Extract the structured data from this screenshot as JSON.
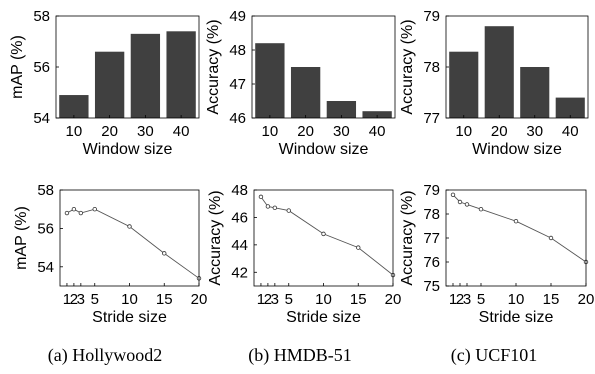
{
  "chart_data": [
    {
      "type": "bar",
      "categories": [
        "10",
        "20",
        "30",
        "40"
      ],
      "values": [
        54.9,
        56.6,
        57.3,
        57.4
      ],
      "xlabel": "Window size",
      "ylabel": "mAP (%)",
      "ylim": [
        54,
        58
      ],
      "yticks": [
        "54",
        "56",
        "58"
      ],
      "grid": false
    },
    {
      "type": "bar",
      "categories": [
        "10",
        "20",
        "30",
        "40"
      ],
      "values": [
        48.2,
        47.5,
        46.5,
        46.2
      ],
      "xlabel": "Window size",
      "ylabel": "Accuracy (%)",
      "ylim": [
        46,
        49
      ],
      "yticks": [
        "46",
        "47",
        "48",
        "49"
      ],
      "grid": false
    },
    {
      "type": "bar",
      "categories": [
        "10",
        "20",
        "30",
        "40"
      ],
      "values": [
        78.3,
        78.8,
        78.0,
        77.4
      ],
      "xlabel": "Window size",
      "ylabel": "Accuracy (%)",
      "ylim": [
        77,
        79
      ],
      "yticks": [
        "77",
        "78",
        "79"
      ],
      "grid": false
    },
    {
      "type": "line",
      "x": [
        1,
        2,
        3,
        5,
        10,
        15,
        20
      ],
      "values": [
        56.8,
        57.0,
        56.8,
        57.0,
        56.1,
        54.7,
        53.4
      ],
      "xticks": [
        "1",
        "2",
        "3",
        "5",
        "10",
        "15",
        "20"
      ],
      "xlim": [
        0,
        20
      ],
      "xlabel": "Stride size",
      "ylabel": "mAP (%)",
      "ylim": [
        53,
        58
      ],
      "yticks": [
        "54",
        "56",
        "58"
      ],
      "grid": false
    },
    {
      "type": "line",
      "x": [
        1,
        2,
        3,
        5,
        10,
        15,
        20
      ],
      "values": [
        47.5,
        46.8,
        46.7,
        46.5,
        44.8,
        43.8,
        41.8
      ],
      "xticks": [
        "1",
        "2",
        "3",
        "5",
        "10",
        "15",
        "20"
      ],
      "xlim": [
        0,
        20
      ],
      "xlabel": "Stride size",
      "ylabel": "Accuracy (%)",
      "ylim": [
        41,
        48
      ],
      "yticks": [
        "42",
        "44",
        "46",
        "48"
      ],
      "grid": false
    },
    {
      "type": "line",
      "x": [
        1,
        2,
        3,
        5,
        10,
        15,
        20
      ],
      "values": [
        78.8,
        78.5,
        78.4,
        78.2,
        77.7,
        77.0,
        76.0
      ],
      "xticks": [
        "1",
        "2",
        "3",
        "5",
        "10",
        "15",
        "20"
      ],
      "xlim": [
        0,
        20
      ],
      "xlabel": "Stride size",
      "ylabel": "Accuracy (%)",
      "ylim": [
        75,
        79
      ],
      "yticks": [
        "75",
        "76",
        "77",
        "78",
        "79"
      ],
      "grid": false
    }
  ],
  "captions": [
    "(a) Hollywood2",
    "(b) HMDB-51",
    "(c) UCF101"
  ]
}
